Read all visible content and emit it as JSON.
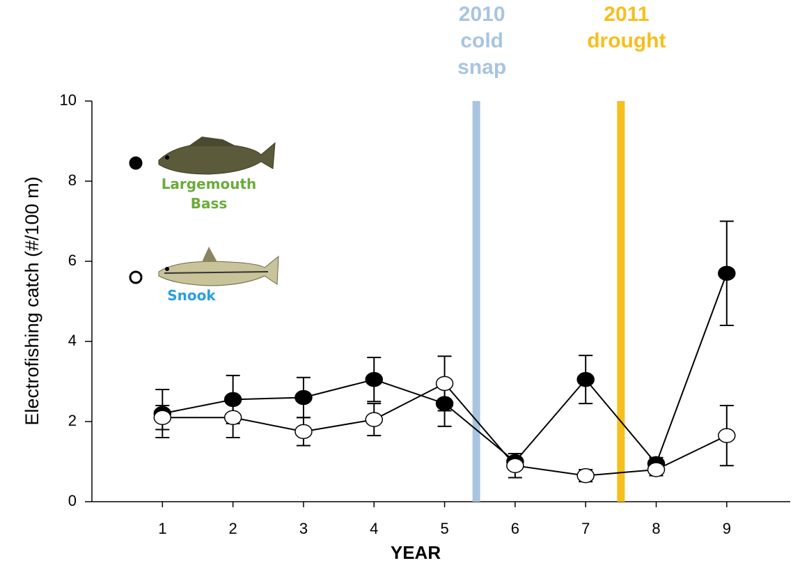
{
  "chart_data": {
    "type": "line",
    "y_label": "Electrofishing catch (#/100 m)",
    "x_label": "YEAR",
    "x": [
      1,
      2,
      3,
      4,
      5,
      6,
      7,
      8,
      9
    ],
    "xlim": [
      0,
      9.9
    ],
    "xticks": [
      1,
      2,
      3,
      4,
      5,
      6,
      7,
      8,
      9
    ],
    "ylim": [
      0,
      10
    ],
    "yticks": [
      0,
      2,
      4,
      6,
      8,
      10
    ],
    "series": [
      {
        "name": "Largemouth Bass",
        "color": "#000000",
        "fill": "filled",
        "label_color": "#6aab3a",
        "values": [
          2.2,
          2.55,
          2.6,
          3.05,
          2.45,
          1.0,
          3.05,
          0.95,
          5.7
        ],
        "errors": [
          0.6,
          0.6,
          0.5,
          0.55,
          0.57,
          0.2,
          0.6,
          0.15,
          1.3
        ]
      },
      {
        "name": "Snook",
        "color": "#000000",
        "fill": "open",
        "label_color": "#2a9ee0",
        "values": [
          2.1,
          2.1,
          1.75,
          2.05,
          2.95,
          0.9,
          0.65,
          0.8,
          1.65
        ],
        "errors": [
          0.3,
          0.5,
          0.35,
          0.4,
          0.68,
          0.3,
          0.15,
          0.15,
          0.75
        ]
      }
    ],
    "annotations": [
      {
        "x": 5.45,
        "color": "#a9c4e0",
        "lines": [
          "2010",
          "cold",
          "snap"
        ]
      },
      {
        "x": 7.5,
        "color": "#f5bf1c",
        "lines": [
          "2011",
          "drought"
        ]
      }
    ]
  }
}
